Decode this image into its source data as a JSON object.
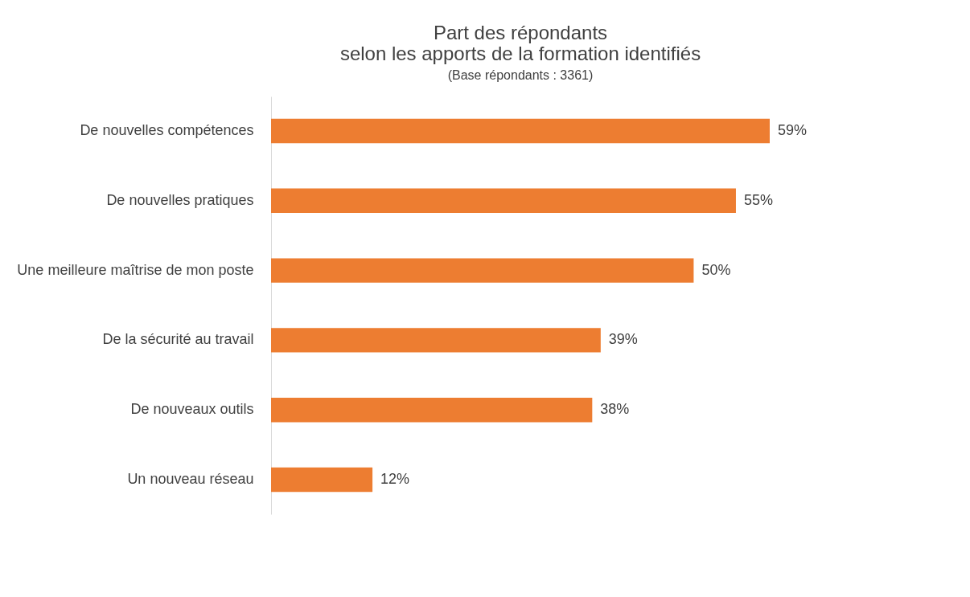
{
  "chart_data": {
    "type": "bar",
    "orientation": "horizontal",
    "title": "Part des répondants\nselon les apports de la formation identifiés",
    "subtitle": "(Base répondants : 3361)",
    "categories": [
      "De nouvelles compétences",
      "De nouvelles pratiques",
      "Une meilleure maîtrise de mon poste",
      "De la sécurité au travail",
      "De nouveaux outils",
      "Un nouveau réseau"
    ],
    "values": [
      59,
      55,
      50,
      39,
      38,
      12
    ],
    "value_labels": [
      "59%",
      "55%",
      "50%",
      "39%",
      "38%",
      "12%"
    ],
    "color": "#ed7d31",
    "grid": false
  }
}
